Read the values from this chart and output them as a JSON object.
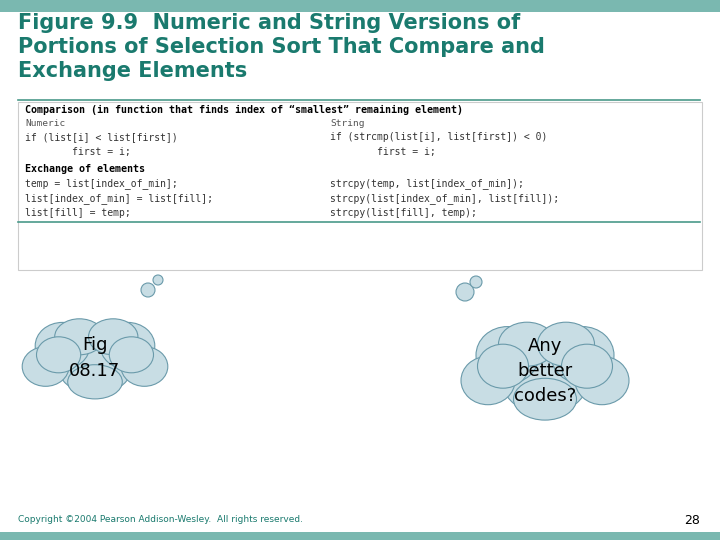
{
  "title_line1": "Figure 9.9  Numeric and String Versions of",
  "title_line2": "Portions of Selection Sort That Compare and",
  "title_line3": "Exchange Elements",
  "title_color": "#1a7a6e",
  "bg_color": "#f0f0ec",
  "content_bg": "#fafaf8",
  "section1_header": "Comparison (in function that finds index of “smallest” remaining element)",
  "numeric_label": "Numeric",
  "string_label": "String",
  "numeric_code1": "if (list[i] < list[first])",
  "string_code1": "if (strcmp(list[i], list[first]) < 0)",
  "numeric_code2": "        first = i;",
  "string_code2": "        first = i;",
  "section2_header": "Exchange of elements",
  "numeric_ex1": "temp = list[index_of_min];",
  "string_ex1": "strcpy(temp, list[index_of_min]);",
  "numeric_ex2": "list[index_of_min] = list[fill];",
  "string_ex2": "strcpy(list[index_of_min], list[fill]);",
  "numeric_ex3": "list[fill] = temp;",
  "string_ex3": "strcpy(list[fill], temp);",
  "bubble1_text": "Fig\n08.17",
  "bubble2_text": "Any\nbetter\ncodes?",
  "copyright": "Copyright ©2004 Pearson Addison-Wesley.  All rights reserved.",
  "page_num": "28",
  "code_color": "#333333",
  "header_bold_color": "#000000",
  "bubble_fill": "#c8dde4",
  "bubble_edge": "#6a9aaa",
  "separator_color": "#4a9a8a",
  "teal_strip": "#7ab8b0"
}
